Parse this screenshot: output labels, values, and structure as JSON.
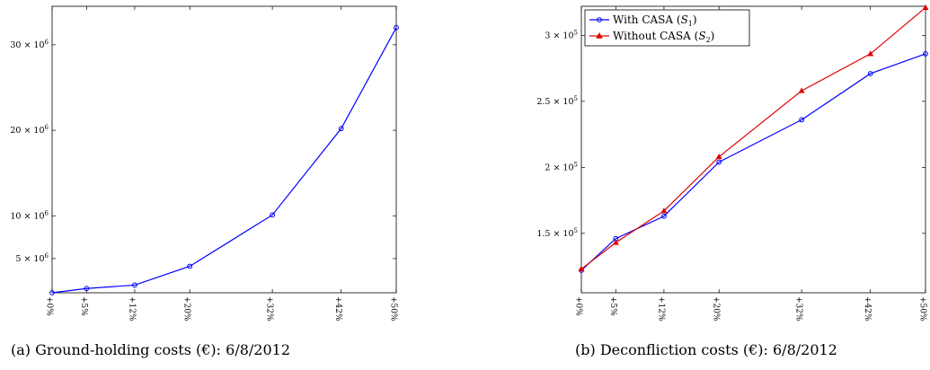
{
  "captions": {
    "a": "(a)  Ground-holding costs (€): 6/8/2012",
    "b": "(b)  Deconfliction costs (€): 6/8/2012"
  },
  "chart_data": [
    {
      "id": "a",
      "type": "line",
      "title": "",
      "xlabel": "",
      "ylabel": "",
      "x": [
        0,
        5,
        12,
        20,
        32,
        42,
        50
      ],
      "x_tick_labels": [
        "+0%",
        "+5%",
        "+12%",
        "+20%",
        "+32%",
        "+42%",
        "+50%"
      ],
      "xlim": [
        0,
        50
      ],
      "ylim": [
        1000000,
        34500000
      ],
      "y_ticks": [
        {
          "value": 5000000,
          "mantissa": "5",
          "exp": "6"
        },
        {
          "value": 10000000,
          "mantissa": "10",
          "exp": "6"
        },
        {
          "value": 20000000,
          "mantissa": "20",
          "exp": "6"
        },
        {
          "value": 30000000,
          "mantissa": "30",
          "exp": "6"
        }
      ],
      "grid": false,
      "series": [
        {
          "color": "#0000ff",
          "marker": "circle",
          "values": [
            1000000,
            1500000,
            1900000,
            4100000,
            10100000,
            20200000,
            32000000
          ]
        }
      ]
    },
    {
      "id": "b",
      "type": "line",
      "title": "",
      "xlabel": "",
      "ylabel": "",
      "x": [
        0,
        5,
        12,
        20,
        32,
        42,
        50
      ],
      "x_tick_labels": [
        "+0%",
        "+5%",
        "+12%",
        "+20%",
        "+32%",
        "+42%",
        "+50%"
      ],
      "xlim": [
        0,
        50
      ],
      "ylim": [
        105000,
        322000
      ],
      "y_ticks": [
        {
          "value": 150000,
          "mantissa": "1.5",
          "exp": "5"
        },
        {
          "value": 200000,
          "mantissa": "2",
          "exp": "5"
        },
        {
          "value": 250000,
          "mantissa": "2.5",
          "exp": "5"
        },
        {
          "value": 300000,
          "mantissa": "3",
          "exp": "5"
        }
      ],
      "grid": false,
      "legend": "top-left",
      "series": [
        {
          "name": "With CASA",
          "symbol": "S",
          "subscript": "1",
          "color": "#0000ff",
          "marker": "circle",
          "values": [
            122000,
            146000,
            163000,
            204000,
            236000,
            271000,
            286000
          ]
        },
        {
          "name": "Without CASA",
          "symbol": "S",
          "subscript": "2",
          "color": "#e00000",
          "marker": "triangle",
          "values": [
            123000,
            143000,
            167000,
            208000,
            258000,
            286000,
            321000
          ]
        }
      ]
    }
  ]
}
